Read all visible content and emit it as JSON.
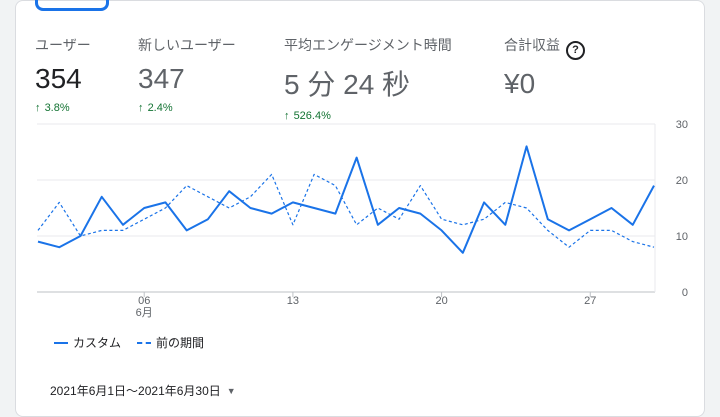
{
  "metrics": [
    {
      "label": "ユーザー",
      "value": "354",
      "delta": "3.8%",
      "arrow": "↑"
    },
    {
      "label": "新しいユーザー",
      "value": "347",
      "delta": "2.4%",
      "arrow": "↑"
    },
    {
      "label": "平均エンゲージメント時間",
      "value": "5 分 24 秒",
      "delta": "526.4%",
      "arrow": "↑"
    },
    {
      "label": "合計収益",
      "value": "¥0",
      "help_icon": "?"
    }
  ],
  "legend": {
    "current": "カスタム",
    "previous": "前の期間"
  },
  "date_range": {
    "label": "2021年6月1日～2021年6月30日",
    "caret": "▼"
  },
  "colors": {
    "accent": "#1a73e8",
    "positive": "#137333"
  },
  "chart_data": {
    "type": "line",
    "x": [
      1,
      2,
      3,
      4,
      5,
      6,
      7,
      8,
      9,
      10,
      11,
      12,
      13,
      14,
      15,
      16,
      17,
      18,
      19,
      20,
      21,
      22,
      23,
      24,
      25,
      26,
      27,
      28,
      29,
      30
    ],
    "x_tick_labels": [
      {
        "x": 6,
        "label": "06",
        "sublabel": "6月"
      },
      {
        "x": 13,
        "label": "13"
      },
      {
        "x": 20,
        "label": "20"
      },
      {
        "x": 27,
        "label": "27"
      }
    ],
    "ylim": [
      0,
      30
    ],
    "y_ticks": [
      0,
      10,
      20,
      30
    ],
    "grid": true,
    "legend_position": "bottom-left",
    "series": [
      {
        "name": "カスタム",
        "style": "solid",
        "values": [
          9,
          8,
          10,
          17,
          12,
          15,
          16,
          11,
          13,
          18,
          15,
          14,
          16,
          15,
          14,
          24,
          12,
          15,
          14,
          11,
          7,
          16,
          12,
          26,
          13,
          11,
          13,
          15,
          12,
          19
        ]
      },
      {
        "name": "前の期間",
        "style": "dashed",
        "values": [
          11,
          16,
          10,
          11,
          11,
          13,
          15,
          19,
          17,
          15,
          17,
          21,
          12,
          21,
          19,
          12,
          15,
          13,
          19,
          13,
          12,
          13,
          16,
          15,
          11,
          8,
          11,
          11,
          9,
          8
        ]
      }
    ]
  }
}
